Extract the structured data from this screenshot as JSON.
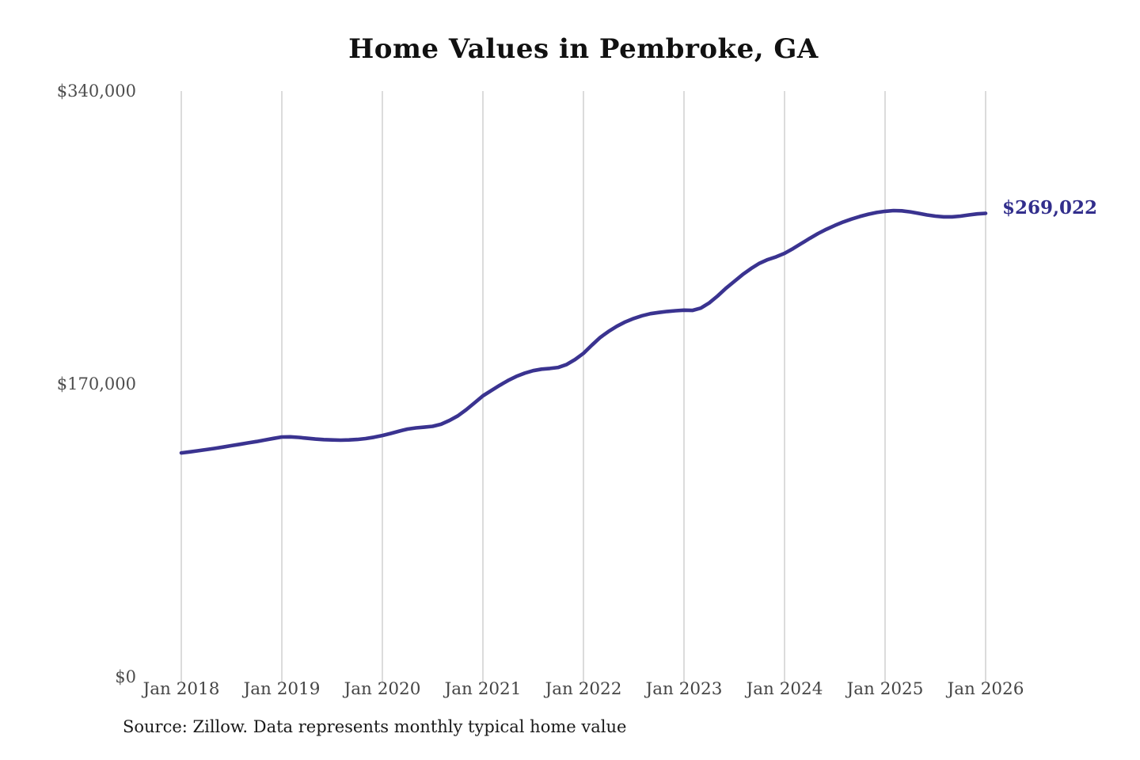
{
  "title": "Home Values in Pembroke, GA",
  "source_note": "Source: Zillow. Data represents monthly typical home value",
  "end_label": "$269,022",
  "colors": {
    "line": "#3a3390",
    "end_label": "#322e8c",
    "gridline": "#cccccc",
    "title_text": "#111111",
    "axis_text": "#4d4d4d",
    "source_text": "#1a1a1a",
    "background": "#ffffff"
  },
  "chart_data": {
    "type": "line",
    "title": "Home Values in Pembroke, GA",
    "xlabel": "",
    "ylabel": "",
    "ylim": [
      0,
      340000
    ],
    "grid": "vertical-only",
    "legend_position": "none",
    "line_color": "#3a3390",
    "end_point_label": "$269,022",
    "end_point_value": 269022,
    "y_ticks": [
      {
        "label": "$0",
        "value": 0
      },
      {
        "label": "$170,000",
        "value": 170000
      },
      {
        "label": "$340,000",
        "value": 340000
      }
    ],
    "x_tick_labels": [
      "Jan 2018",
      "Jan 2019",
      "Jan 2020",
      "Jan 2021",
      "Jan 2022",
      "Jan 2023",
      "Jan 2024",
      "Jan 2025",
      "Jan 2026"
    ],
    "x": [
      "2018-01",
      "2018-02",
      "2018-03",
      "2018-04",
      "2018-05",
      "2018-06",
      "2018-07",
      "2018-08",
      "2018-09",
      "2018-10",
      "2018-11",
      "2018-12",
      "2019-01",
      "2019-02",
      "2019-03",
      "2019-04",
      "2019-05",
      "2019-06",
      "2019-07",
      "2019-08",
      "2019-09",
      "2019-10",
      "2019-11",
      "2019-12",
      "2020-01",
      "2020-02",
      "2020-03",
      "2020-04",
      "2020-05",
      "2020-06",
      "2020-07",
      "2020-08",
      "2020-09",
      "2020-10",
      "2020-11",
      "2020-12",
      "2021-01",
      "2021-02",
      "2021-03",
      "2021-04",
      "2021-05",
      "2021-06",
      "2021-07",
      "2021-08",
      "2021-09",
      "2021-10",
      "2021-11",
      "2021-12",
      "2022-01",
      "2022-02",
      "2022-03",
      "2022-04",
      "2022-05",
      "2022-06",
      "2022-07",
      "2022-08",
      "2022-09",
      "2022-10",
      "2022-11",
      "2022-12",
      "2023-01",
      "2023-02",
      "2023-03",
      "2023-04",
      "2023-05",
      "2023-06",
      "2023-07",
      "2023-08",
      "2023-09",
      "2023-10",
      "2023-11",
      "2023-12",
      "2024-01",
      "2024-02",
      "2024-03",
      "2024-04",
      "2024-05",
      "2024-06",
      "2024-07",
      "2024-08",
      "2024-09",
      "2024-10",
      "2024-11",
      "2024-12",
      "2025-01",
      "2025-02",
      "2025-03",
      "2025-04",
      "2025-05",
      "2025-06",
      "2025-07",
      "2025-08",
      "2025-09",
      "2025-10",
      "2025-11",
      "2025-12",
      "2026-01"
    ],
    "values": [
      130000,
      130600,
      131200,
      131900,
      132600,
      133400,
      134200,
      135000,
      135800,
      136600,
      137500,
      138400,
      139200,
      139300,
      139000,
      138500,
      138000,
      137700,
      137500,
      137400,
      137500,
      137800,
      138300,
      139100,
      140100,
      141300,
      142600,
      143800,
      144500,
      144900,
      145400,
      146600,
      148800,
      151500,
      155000,
      159000,
      163100,
      166200,
      169200,
      172000,
      174400,
      176300,
      177700,
      178600,
      179000,
      179600,
      181300,
      184200,
      187800,
      192500,
      197000,
      200500,
      203500,
      206000,
      208000,
      209600,
      210800,
      211500,
      212100,
      212500,
      212800,
      212700,
      214000,
      217000,
      221000,
      225500,
      229500,
      233500,
      237000,
      240000,
      242200,
      243800,
      245800,
      248500,
      251500,
      254500,
      257300,
      259800,
      262000,
      264000,
      265700,
      267200,
      268500,
      269500,
      270200,
      270600,
      270500,
      269900,
      269000,
      268100,
      267400,
      267000,
      267000,
      267400,
      268100,
      268700,
      269022
    ]
  }
}
